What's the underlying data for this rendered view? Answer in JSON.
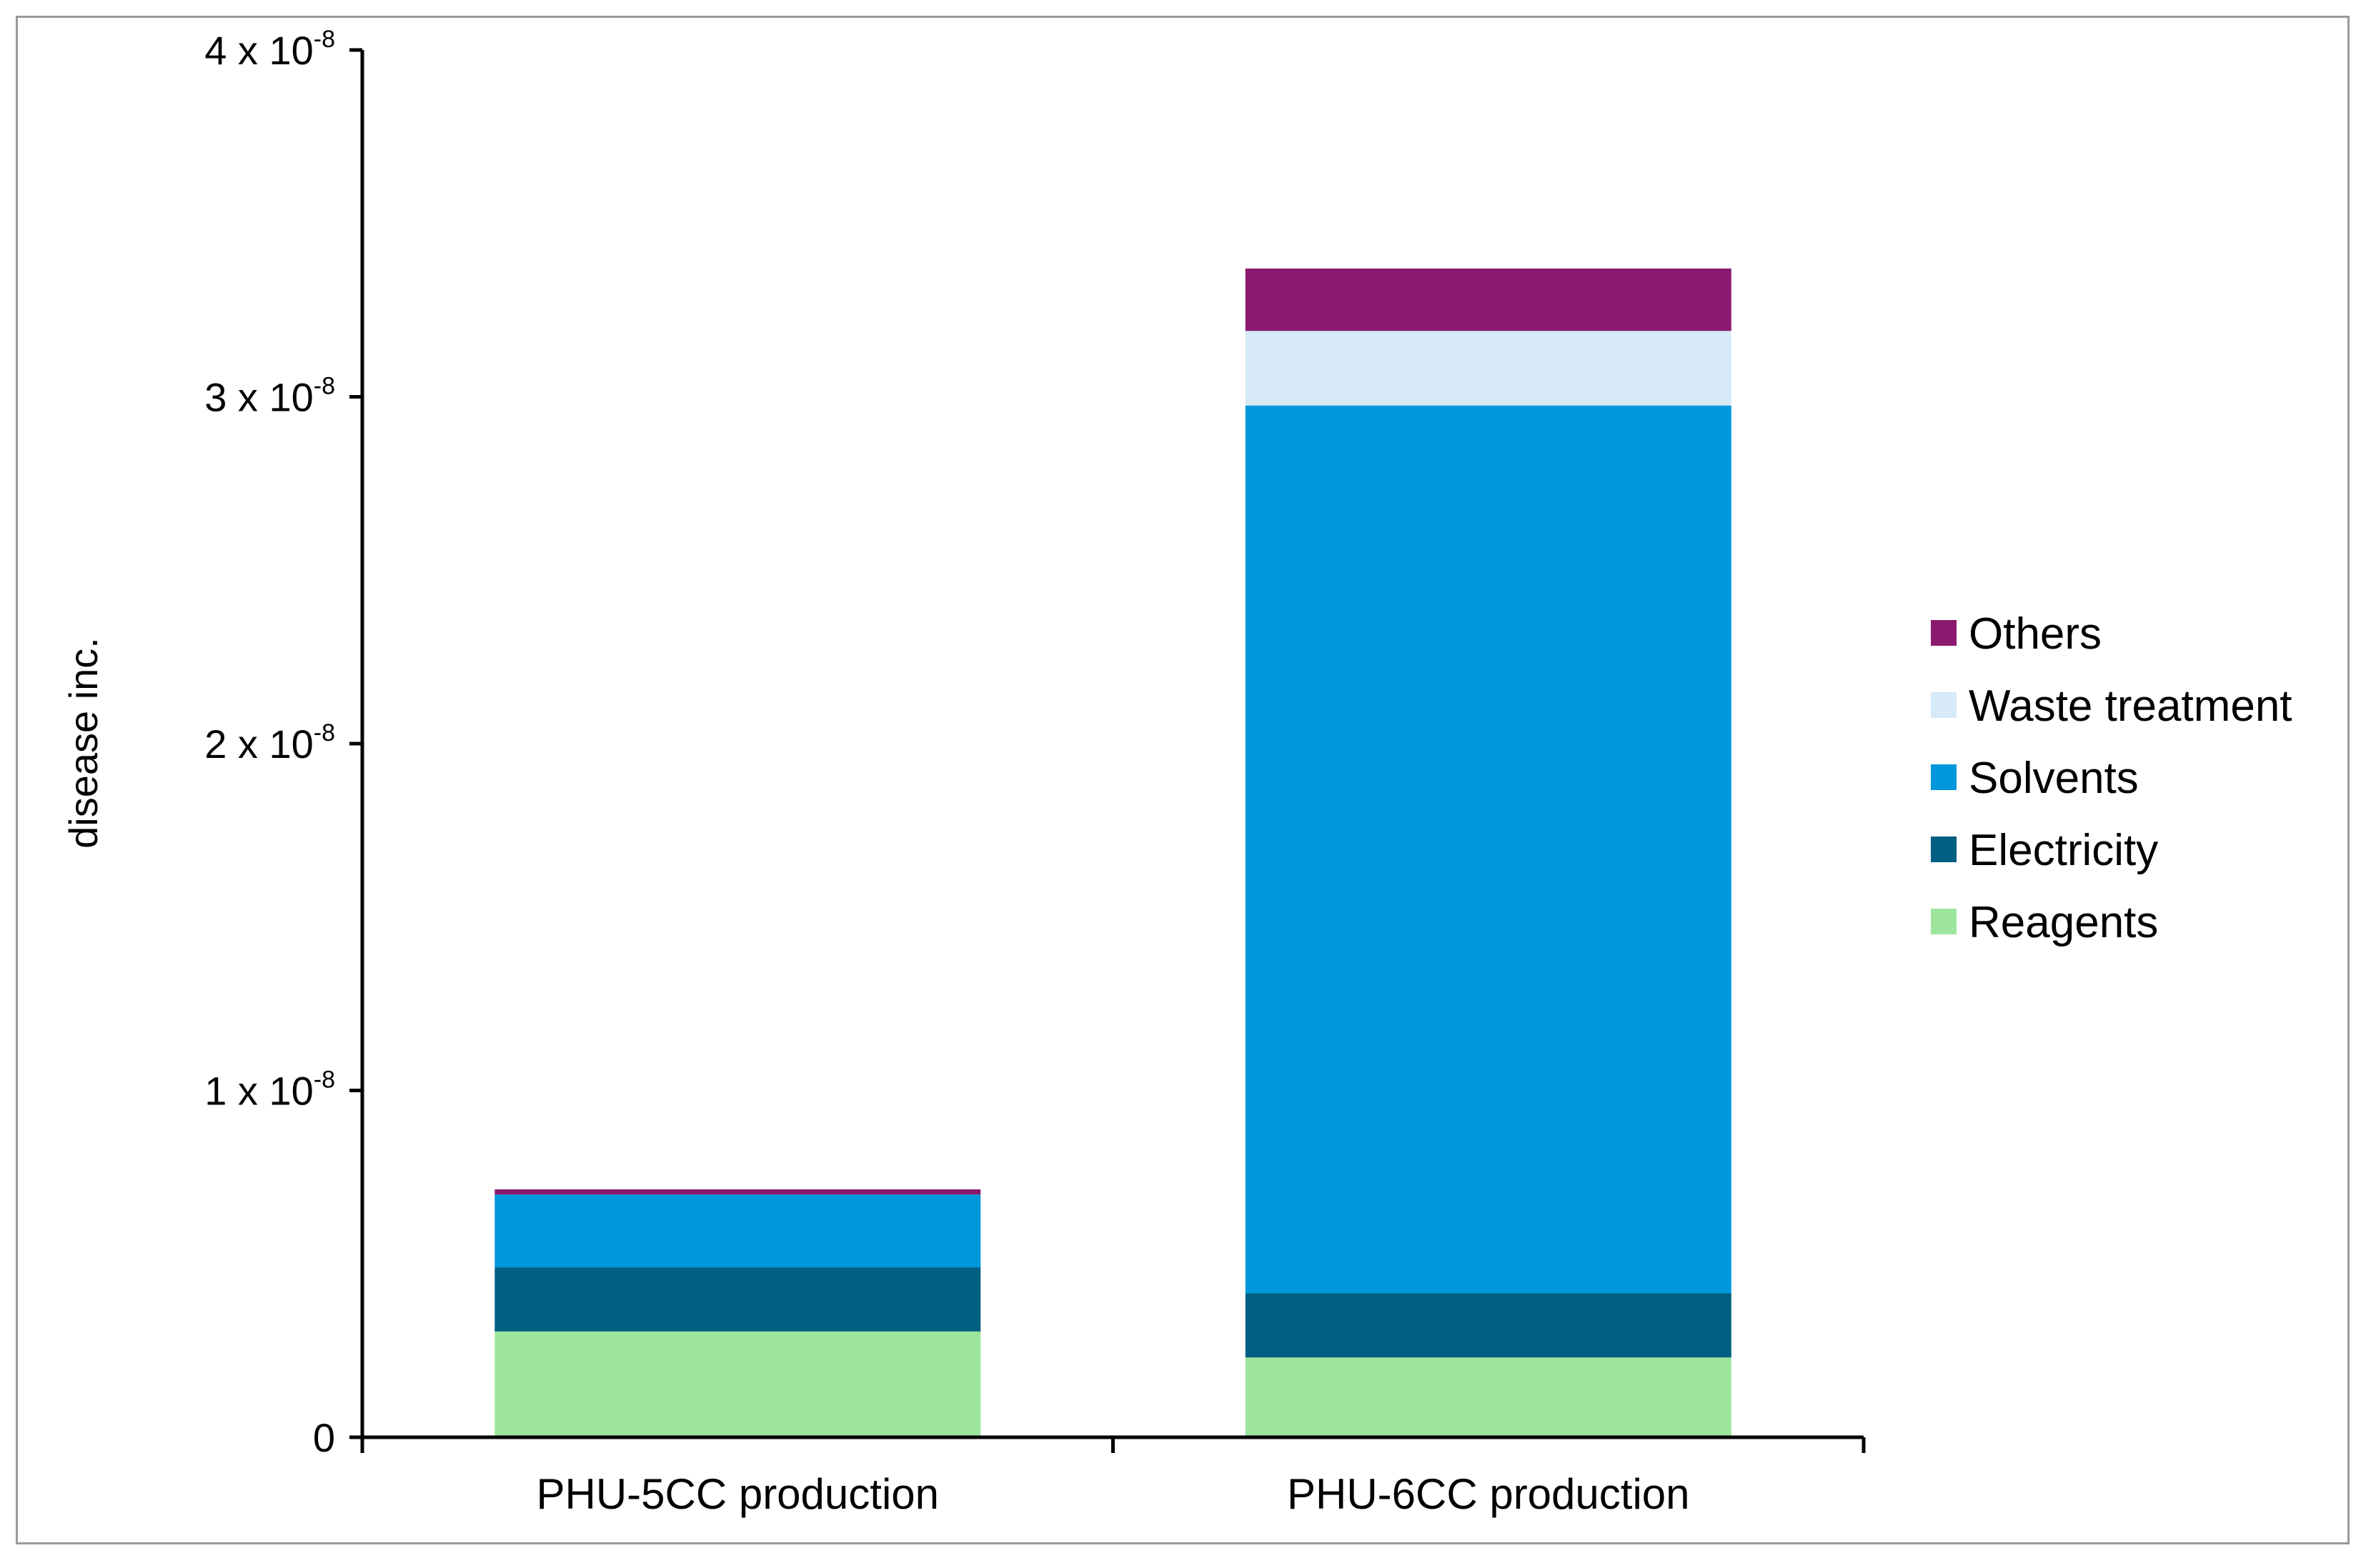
{
  "chart_data": {
    "type": "bar",
    "stacked": true,
    "title": "",
    "xlabel": "",
    "ylabel": "disease inc.",
    "ylim": [
      0,
      4e-08
    ],
    "categories": [
      "PHU-5CC production",
      "PHU-6CC production"
    ],
    "y_ticks": [
      {
        "value": 0,
        "mantissa": "0",
        "exponent": ""
      },
      {
        "value": 1e-08,
        "mantissa": "1 x 10",
        "exponent": "-8"
      },
      {
        "value": 2e-08,
        "mantissa": "2 x 10",
        "exponent": "-8"
      },
      {
        "value": 3e-08,
        "mantissa": "3 x 10",
        "exponent": "-8"
      },
      {
        "value": 4e-08,
        "mantissa": "4 x 10",
        "exponent": "-8"
      }
    ],
    "series": [
      {
        "name": "Reagents",
        "color": "#9de59d",
        "values": [
          3.05e-09,
          2.3e-09
        ]
      },
      {
        "name": "Electricity",
        "color": "#005f83",
        "values": [
          1.85e-09,
          1.85e-09
        ]
      },
      {
        "name": "Solvents",
        "color": "#0097dc",
        "values": [
          2.1e-09,
          2.56e-08
        ]
      },
      {
        "name": "Waste treatment",
        "color": "#d6eaf8",
        "values": [
          0.0,
          2.15e-09
        ]
      },
      {
        "name": "Others",
        "color": "#8b1a6e",
        "values": [
          1.5e-10,
          1.8e-09
        ]
      }
    ],
    "legend_position": "right",
    "grid": false
  }
}
